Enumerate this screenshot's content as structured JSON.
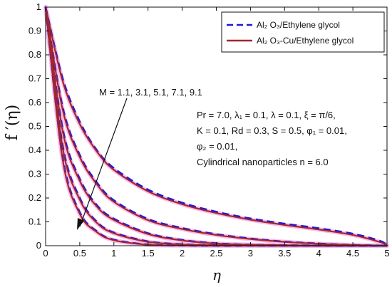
{
  "chart_data": {
    "type": "line",
    "xlabel": "η",
    "ylabel": "f ′(η)",
    "xlim": [
      0,
      5
    ],
    "ylim": [
      0,
      1
    ],
    "xticks": [
      0,
      0.5,
      1,
      1.5,
      2,
      2.5,
      3,
      3.5,
      4,
      4.5,
      5
    ],
    "yticks": [
      0,
      0.1,
      0.2,
      0.3,
      0.4,
      0.5,
      0.6,
      0.7,
      0.8,
      0.9,
      1
    ],
    "xtick_labels": [
      "0",
      "0.5",
      "1",
      "1.5",
      "2",
      "2.5",
      "3",
      "3.5",
      "4",
      "4.5",
      "5"
    ],
    "ytick_labels": [
      "0",
      "0.1",
      "0.2",
      "0.3",
      "0.4",
      "0.5",
      "0.6",
      "0.7",
      "0.8",
      "0.9",
      "1"
    ],
    "grid": false,
    "legend_position": "top-right",
    "legend": [
      {
        "label": "Al₂ O₃/Ethylene glycol",
        "style": "dashed",
        "color": "#1c1cd6"
      },
      {
        "label": "Al₂ O₃-Cu/Ethylene glycol",
        "style": "solid",
        "color": "#a0262c"
      }
    ],
    "parameter_values": [
      "1.1",
      "3.1",
      "5.1",
      "7.1",
      "9.1"
    ],
    "annotations": {
      "arrow_label": "M = 1.1, 3.1, 5.1, 7.1, 9.1",
      "params": [
        "Pr = 7.0, λ₁ = 0.1, λ = 0.1, ξ = π/6,",
        "K = 0.1, Rd = 0.3, S = 0.5, φ₁ = 0.01,",
        "φ₂ = 0.01,",
        "Cylindrical nanoparticles n = 6.0"
      ]
    },
    "series": [
      {
        "name": "Al₂ O₃/Ethylene glycol",
        "style": "dashed",
        "color": "#1c1cd6",
        "curves": [
          {
            "x": [
              0,
              0.25,
              0.5,
              0.75,
              1,
              1.5,
              2,
              2.5,
              3,
              3.5,
              4,
              4.5,
              4.9,
              5
            ],
            "y": [
              1,
              0.7,
              0.52,
              0.4,
              0.325,
              0.235,
              0.18,
              0.142,
              0.114,
              0.092,
              0.073,
              0.05,
              0.02,
              0
            ]
          },
          {
            "x": [
              0,
              0.25,
              0.5,
              0.75,
              1,
              1.5,
              2,
              2.5,
              3,
              3.5,
              4,
              4.5,
              5
            ],
            "y": [
              1,
              0.58,
              0.38,
              0.265,
              0.19,
              0.112,
              0.074,
              0.048,
              0.03,
              0.017,
              0.009,
              0.003,
              0
            ]
          },
          {
            "x": [
              0,
              0.25,
              0.5,
              0.75,
              1,
              1.5,
              2,
              2.5,
              3,
              3.5,
              4,
              5
            ],
            "y": [
              1,
              0.49,
              0.28,
              0.17,
              0.113,
              0.052,
              0.024,
              0.01,
              0.004,
              0.002,
              0.001,
              0
            ]
          },
          {
            "x": [
              0,
              0.25,
              0.5,
              0.75,
              1,
              1.5,
              2,
              2.5,
              3,
              4,
              5
            ],
            "y": [
              1,
              0.42,
              0.2,
              0.1,
              0.055,
              0.018,
              0.006,
              0.002,
              0.001,
              0,
              0
            ]
          },
          {
            "x": [
              0,
              0.25,
              0.5,
              0.75,
              1,
              1.5,
              2,
              2.5,
              3,
              4,
              5
            ],
            "y": [
              1,
              0.37,
              0.14,
              0.06,
              0.025,
              0.005,
              0.001,
              0,
              0,
              0,
              0
            ]
          }
        ]
      },
      {
        "name": "Al₂ O₃-Cu/Ethylene glycol",
        "style": "solid",
        "color": "#a0262c",
        "curves": [
          {
            "x": [
              0,
              0.25,
              0.5,
              0.75,
              1,
              1.5,
              2,
              2.5,
              3,
              3.5,
              4,
              4.5,
              4.9,
              5
            ],
            "y": [
              1,
              0.69,
              0.51,
              0.395,
              0.318,
              0.228,
              0.174,
              0.137,
              0.109,
              0.087,
              0.068,
              0.045,
              0.015,
              0
            ]
          },
          {
            "x": [
              0,
              0.25,
              0.5,
              0.75,
              1,
              1.5,
              2,
              2.5,
              3,
              3.5,
              4,
              4.5,
              5
            ],
            "y": [
              1,
              0.57,
              0.372,
              0.258,
              0.184,
              0.107,
              0.07,
              0.045,
              0.028,
              0.016,
              0.008,
              0.003,
              0
            ]
          },
          {
            "x": [
              0,
              0.25,
              0.5,
              0.75,
              1,
              1.5,
              2,
              2.5,
              3,
              3.5,
              4,
              5
            ],
            "y": [
              1,
              0.48,
              0.272,
              0.164,
              0.108,
              0.049,
              0.022,
              0.009,
              0.004,
              0.002,
              0.001,
              0
            ]
          },
          {
            "x": [
              0,
              0.25,
              0.5,
              0.75,
              1,
              1.5,
              2,
              2.5,
              3,
              4,
              5
            ],
            "y": [
              1,
              0.41,
              0.193,
              0.096,
              0.052,
              0.016,
              0.005,
              0.002,
              0.001,
              0,
              0
            ]
          },
          {
            "x": [
              0,
              0.25,
              0.5,
              0.75,
              1,
              1.5,
              2,
              2.5,
              3,
              4,
              5
            ],
            "y": [
              1,
              0.36,
              0.134,
              0.057,
              0.023,
              0.004,
              0.001,
              0,
              0,
              0,
              0
            ]
          }
        ]
      }
    ]
  }
}
